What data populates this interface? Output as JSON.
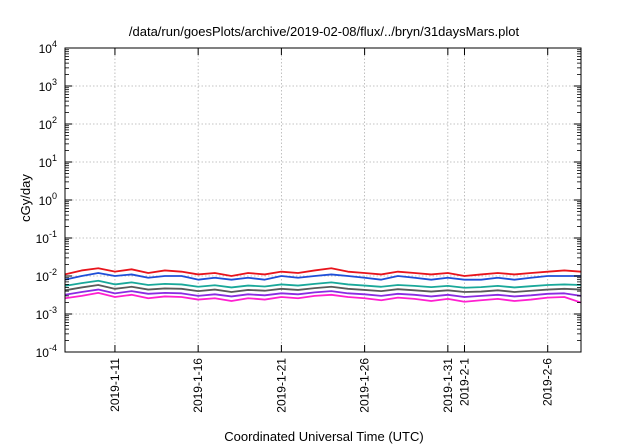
{
  "chart_data": {
    "type": "line",
    "title": "/data/run/goesPlots/archive/2019-02-08/flux/../bryn/31daysMars.plot",
    "xlabel": "Coordinated Universal Time (UTC)",
    "ylabel": "cGy/day",
    "yscale": "log",
    "ylim": [
      0.0001,
      10000
    ],
    "xlim": [
      "2019-01-08",
      "2019-02-08"
    ],
    "y_ticks": [
      {
        "base": "10",
        "exp": "-4"
      },
      {
        "base": "10",
        "exp": "-3"
      },
      {
        "base": "10",
        "exp": "-2"
      },
      {
        "base": "10",
        "exp": "-1"
      },
      {
        "base": "10",
        "exp": "0"
      },
      {
        "base": "10",
        "exp": "1"
      },
      {
        "base": "10",
        "exp": "2"
      },
      {
        "base": "10",
        "exp": "3"
      },
      {
        "base": "10",
        "exp": "4"
      }
    ],
    "x_ticks": [
      {
        "date": "2019-01-11",
        "label": "2019-1-11"
      },
      {
        "date": "2019-01-16",
        "label": "2019-1-16"
      },
      {
        "date": "2019-01-21",
        "label": "2019-1-21"
      },
      {
        "date": "2019-01-26",
        "label": "2019-1-26"
      },
      {
        "date": "2019-01-31",
        "label": "2019-1-31"
      },
      {
        "date": "2019-02-01",
        "label": "2019-2-1"
      },
      {
        "date": "2019-02-06",
        "label": "2019-2-6"
      }
    ],
    "grid": true,
    "legend": "none",
    "series": [
      {
        "color": "#e8141c",
        "x": [
          "2019-01-08",
          "2019-01-09",
          "2019-01-10",
          "2019-01-11",
          "2019-01-12",
          "2019-01-13",
          "2019-01-14",
          "2019-01-15",
          "2019-01-16",
          "2019-01-17",
          "2019-01-18",
          "2019-01-19",
          "2019-01-20",
          "2019-01-21",
          "2019-01-22",
          "2019-01-23",
          "2019-01-24",
          "2019-01-25",
          "2019-01-26",
          "2019-01-27",
          "2019-01-28",
          "2019-01-29",
          "2019-01-30",
          "2019-01-31",
          "2019-02-01",
          "2019-02-02",
          "2019-02-03",
          "2019-02-04",
          "2019-02-05",
          "2019-02-06",
          "2019-02-07",
          "2019-02-08"
        ],
        "values": [
          0.011,
          0.014,
          0.016,
          0.013,
          0.015,
          0.012,
          0.014,
          0.013,
          0.011,
          0.012,
          0.01,
          0.012,
          0.011,
          0.013,
          0.012,
          0.014,
          0.016,
          0.013,
          0.012,
          0.011,
          0.013,
          0.012,
          0.011,
          0.012,
          0.01,
          0.011,
          0.012,
          0.011,
          0.012,
          0.013,
          0.014,
          0.013
        ]
      },
      {
        "color": "#1f4fd8",
        "x": [
          "2019-01-08",
          "2019-01-09",
          "2019-01-10",
          "2019-01-11",
          "2019-01-12",
          "2019-01-13",
          "2019-01-14",
          "2019-01-15",
          "2019-01-16",
          "2019-01-17",
          "2019-01-18",
          "2019-01-19",
          "2019-01-20",
          "2019-01-21",
          "2019-01-22",
          "2019-01-23",
          "2019-01-24",
          "2019-01-25",
          "2019-01-26",
          "2019-01-27",
          "2019-01-28",
          "2019-01-29",
          "2019-01-30",
          "2019-01-31",
          "2019-02-01",
          "2019-02-02",
          "2019-02-03",
          "2019-02-04",
          "2019-02-05",
          "2019-02-06",
          "2019-02-07",
          "2019-02-08"
        ],
        "values": [
          0.008,
          0.01,
          0.012,
          0.01,
          0.011,
          0.009,
          0.01,
          0.01,
          0.008,
          0.009,
          0.008,
          0.009,
          0.008,
          0.01,
          0.009,
          0.01,
          0.011,
          0.01,
          0.009,
          0.008,
          0.01,
          0.009,
          0.008,
          0.009,
          0.008,
          0.008,
          0.009,
          0.008,
          0.009,
          0.01,
          0.01,
          0.01
        ]
      },
      {
        "color": "#19a89a",
        "x": [
          "2019-01-08",
          "2019-01-09",
          "2019-01-10",
          "2019-01-11",
          "2019-01-12",
          "2019-01-13",
          "2019-01-14",
          "2019-01-15",
          "2019-01-16",
          "2019-01-17",
          "2019-01-18",
          "2019-01-19",
          "2019-01-20",
          "2019-01-21",
          "2019-01-22",
          "2019-01-23",
          "2019-01-24",
          "2019-01-25",
          "2019-01-26",
          "2019-01-27",
          "2019-01-28",
          "2019-01-29",
          "2019-01-30",
          "2019-01-31",
          "2019-02-01",
          "2019-02-02",
          "2019-02-03",
          "2019-02-04",
          "2019-02-05",
          "2019-02-06",
          "2019-02-07",
          "2019-02-08"
        ],
        "values": [
          0.0055,
          0.0065,
          0.0075,
          0.006,
          0.0068,
          0.0058,
          0.0062,
          0.006,
          0.0052,
          0.0057,
          0.005,
          0.0056,
          0.0053,
          0.006,
          0.0056,
          0.0062,
          0.0068,
          0.006,
          0.0056,
          0.0052,
          0.0058,
          0.0055,
          0.0051,
          0.0055,
          0.0049,
          0.0051,
          0.0055,
          0.005,
          0.0054,
          0.0058,
          0.006,
          0.0058
        ]
      },
      {
        "color": "#5a5a5a",
        "x": [
          "2019-01-08",
          "2019-01-09",
          "2019-01-10",
          "2019-01-11",
          "2019-01-12",
          "2019-01-13",
          "2019-01-14",
          "2019-01-15",
          "2019-01-16",
          "2019-01-17",
          "2019-01-18",
          "2019-01-19",
          "2019-01-20",
          "2019-01-21",
          "2019-01-22",
          "2019-01-23",
          "2019-01-24",
          "2019-01-25",
          "2019-01-26",
          "2019-01-27",
          "2019-01-28",
          "2019-01-29",
          "2019-01-30",
          "2019-01-31",
          "2019-02-01",
          "2019-02-02",
          "2019-02-03",
          "2019-02-04",
          "2019-02-05",
          "2019-02-06",
          "2019-02-07",
          "2019-02-08"
        ],
        "values": [
          0.0042,
          0.005,
          0.0058,
          0.0046,
          0.0052,
          0.0044,
          0.0047,
          0.0046,
          0.004,
          0.0044,
          0.0038,
          0.0043,
          0.0041,
          0.0046,
          0.0043,
          0.0048,
          0.0052,
          0.0046,
          0.0043,
          0.004,
          0.0045,
          0.0042,
          0.0039,
          0.0042,
          0.0038,
          0.0039,
          0.0042,
          0.0038,
          0.0041,
          0.0044,
          0.0046,
          0.0044
        ]
      },
      {
        "color": "#8a2be2",
        "x": [
          "2019-01-08",
          "2019-01-09",
          "2019-01-10",
          "2019-01-11",
          "2019-01-12",
          "2019-01-13",
          "2019-01-14",
          "2019-01-15",
          "2019-01-16",
          "2019-01-17",
          "2019-01-18",
          "2019-01-19",
          "2019-01-20",
          "2019-01-21",
          "2019-01-22",
          "2019-01-23",
          "2019-01-24",
          "2019-01-25",
          "2019-01-26",
          "2019-01-27",
          "2019-01-28",
          "2019-01-29",
          "2019-01-30",
          "2019-01-31",
          "2019-02-01",
          "2019-02-02",
          "2019-02-03",
          "2019-02-04",
          "2019-02-05",
          "2019-02-06",
          "2019-02-07",
          "2019-02-08"
        ],
        "values": [
          0.0032,
          0.0038,
          0.0044,
          0.0035,
          0.004,
          0.0034,
          0.0036,
          0.0035,
          0.003,
          0.0033,
          0.0029,
          0.0033,
          0.0031,
          0.0035,
          0.0033,
          0.0037,
          0.004,
          0.0035,
          0.0033,
          0.003,
          0.0034,
          0.0032,
          0.0029,
          0.0032,
          0.0028,
          0.003,
          0.0032,
          0.0029,
          0.0031,
          0.0034,
          0.0035,
          0.003
        ]
      },
      {
        "color": "#ff1fd0",
        "x": [
          "2019-01-08",
          "2019-01-09",
          "2019-01-10",
          "2019-01-11",
          "2019-01-12",
          "2019-01-13",
          "2019-01-14",
          "2019-01-15",
          "2019-01-16",
          "2019-01-17",
          "2019-01-18",
          "2019-01-19",
          "2019-01-20",
          "2019-01-21",
          "2019-01-22",
          "2019-01-23",
          "2019-01-24",
          "2019-01-25",
          "2019-01-26",
          "2019-01-27",
          "2019-01-28",
          "2019-01-29",
          "2019-01-30",
          "2019-01-31",
          "2019-02-01",
          "2019-02-02",
          "2019-02-03",
          "2019-02-04",
          "2019-02-05",
          "2019-02-06",
          "2019-02-07",
          "2019-02-08"
        ],
        "values": [
          0.0026,
          0.003,
          0.0036,
          0.0028,
          0.0032,
          0.0026,
          0.0029,
          0.0028,
          0.0024,
          0.0026,
          0.0022,
          0.0026,
          0.0024,
          0.0028,
          0.0026,
          0.003,
          0.0032,
          0.0028,
          0.0026,
          0.0023,
          0.0027,
          0.0025,
          0.0022,
          0.0025,
          0.0021,
          0.0023,
          0.0025,
          0.0022,
          0.0024,
          0.0027,
          0.0028,
          0.002
        ]
      }
    ]
  }
}
